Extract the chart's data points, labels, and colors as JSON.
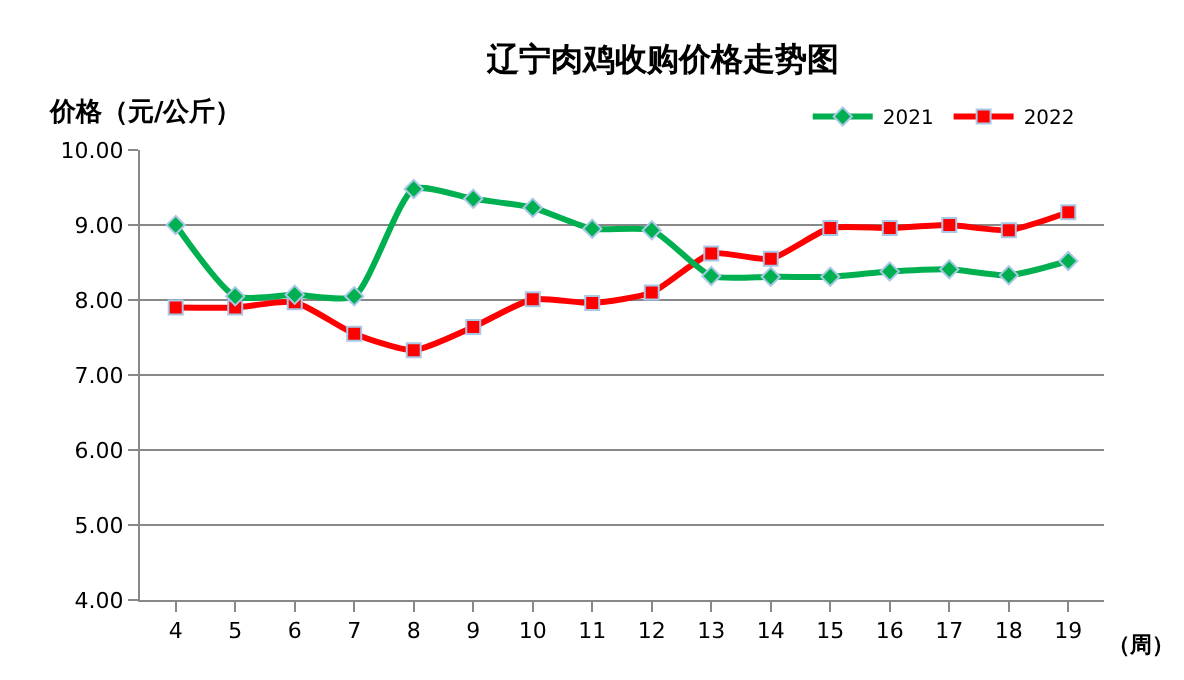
{
  "chart_data": {
    "type": "line",
    "title": "辽宁肉鸡收购价格走势图",
    "ylabel": "价格（元/公斤）",
    "xlabel": "（周）",
    "categories": [
      "4",
      "5",
      "6",
      "7",
      "8",
      "9",
      "10",
      "11",
      "12",
      "13",
      "14",
      "15",
      "16",
      "17",
      "18",
      "19"
    ],
    "series": [
      {
        "name": "2021",
        "color": "#00b050",
        "marker": "diamond",
        "values": [
          9.0,
          8.05,
          8.07,
          8.05,
          9.48,
          9.35,
          9.23,
          8.95,
          8.93,
          8.32,
          8.31,
          8.31,
          8.38,
          8.41,
          8.33,
          8.52
        ]
      },
      {
        "name": "2022",
        "color": "#ff0000",
        "marker": "square",
        "values": [
          7.9,
          7.9,
          7.97,
          7.55,
          7.33,
          7.64,
          8.01,
          7.96,
          8.1,
          8.62,
          8.55,
          8.96,
          8.96,
          9.0,
          8.93,
          9.17
        ]
      }
    ],
    "ylim": [
      4,
      10
    ],
    "yticks": [
      {
        "value": 4,
        "label": "4.00"
      },
      {
        "value": 5,
        "label": "5.00"
      },
      {
        "value": 6,
        "label": "6.00"
      },
      {
        "value": 7,
        "label": "7.00"
      },
      {
        "value": 8,
        "label": "8.00"
      },
      {
        "value": 9,
        "label": "9.00"
      },
      {
        "value": 10,
        "label": "10.00"
      }
    ],
    "grid": "y",
    "legend": "top right"
  }
}
